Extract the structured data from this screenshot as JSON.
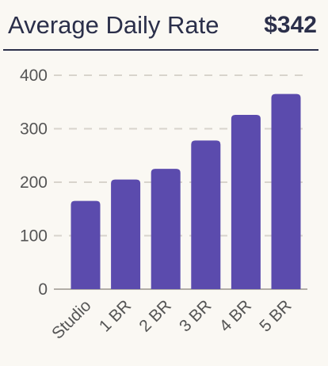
{
  "header": {
    "title": "Average Daily Rate",
    "value": "$342"
  },
  "colors": {
    "bar": "#5b4bad",
    "text": "#2b2f4a",
    "grid": "#d8d4cc",
    "axis": "#555555",
    "background": "#faf8f3"
  },
  "chart_data": {
    "type": "bar",
    "categories": [
      "Studio",
      "1 BR",
      "2 BR",
      "3 BR",
      "4 BR",
      "5 BR"
    ],
    "values": [
      165,
      205,
      225,
      278,
      326,
      365
    ],
    "yticks": [
      0,
      100,
      200,
      300,
      400
    ],
    "ylim": [
      0,
      400
    ],
    "grid": true,
    "xlabel": "",
    "ylabel": ""
  }
}
